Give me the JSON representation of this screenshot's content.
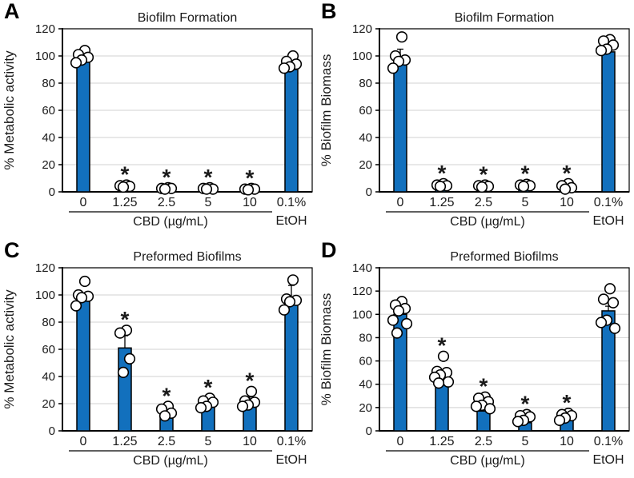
{
  "figure": {
    "colors": {
      "bar_fill": "#1270BD",
      "bar_stroke": "#000000",
      "point_fill": "#ffffff",
      "point_stroke": "#000000",
      "gridline": "#D9D9D9",
      "axis": "#000000",
      "text": "#1a1a1a"
    }
  },
  "chart_data": [
    {
      "panel": "A",
      "type": "bar",
      "title": "Biofilm Formation",
      "ylabel": "% Metabolic activity",
      "group_label": "CBD (µg/mL)",
      "categories": [
        "0",
        "1.25",
        "2.5",
        "5",
        "10"
      ],
      "control_label_top": "0.1%",
      "control_label_bottom": "EtOH",
      "ylim": [
        0,
        120
      ],
      "ytick_step": 20,
      "bar_values": [
        97,
        2,
        1.5,
        1.5,
        1.5,
        90
      ],
      "error_up": [
        0,
        0,
        0,
        0,
        0,
        0
      ],
      "points": [
        [
          104,
          101,
          99,
          97,
          95
        ],
        [
          5,
          4.5,
          4,
          3.5
        ],
        [
          3,
          2.5,
          2.5,
          2
        ],
        [
          3,
          2.5,
          2,
          2
        ],
        [
          2.5,
          2,
          2,
          1.5
        ],
        [
          100,
          96,
          94,
          92,
          91
        ]
      ],
      "significant": [
        false,
        true,
        true,
        true,
        true,
        false
      ]
    },
    {
      "panel": "B",
      "type": "bar",
      "title": "Biofilm Formation",
      "ylabel": "% Biofilm Biomass",
      "group_label": "CBD (µg/mL)",
      "categories": [
        "0",
        "1.25",
        "2.5",
        "5",
        "10"
      ],
      "control_label_top": "0.1%",
      "control_label_bottom": "EtOH",
      "ylim": [
        0,
        120
      ],
      "ytick_step": 20,
      "bar_values": [
        95,
        3,
        2.5,
        3,
        2,
        103
      ],
      "error_up": [
        10,
        0,
        0,
        0,
        0,
        0
      ],
      "points": [
        [
          114,
          100,
          97,
          96,
          91
        ],
        [
          6,
          5,
          4.5,
          4
        ],
        [
          5,
          4.5,
          4,
          3.5
        ],
        [
          5.5,
          5,
          4.5,
          4
        ],
        [
          6,
          4.5,
          3,
          2
        ],
        [
          112,
          111,
          108,
          105,
          104
        ]
      ],
      "significant": [
        false,
        true,
        true,
        true,
        true,
        false
      ]
    },
    {
      "panel": "C",
      "type": "bar",
      "title": "Preformed Biofilms",
      "ylabel": "% Metabolic activity",
      "group_label": "CBD (µg/mL)",
      "categories": [
        "0",
        "1.25",
        "2.5",
        "5",
        "10"
      ],
      "control_label_top": "0.1%",
      "control_label_bottom": "EtOH",
      "ylim": [
        0,
        120
      ],
      "ytick_step": 20,
      "bar_values": [
        97,
        61,
        14,
        19,
        19,
        94
      ],
      "error_up": [
        0,
        9,
        2,
        3,
        6,
        13
      ],
      "points": [
        [
          110,
          100,
          99,
          98,
          92
        ],
        [
          74,
          72,
          53,
          43
        ],
        [
          18,
          16,
          13,
          11
        ],
        [
          24,
          22,
          21,
          18,
          17
        ],
        [
          29,
          22,
          21,
          19,
          18
        ],
        [
          111,
          97,
          96,
          95,
          89
        ]
      ],
      "significant": [
        false,
        true,
        true,
        true,
        true,
        false
      ]
    },
    {
      "panel": "D",
      "type": "bar",
      "title": "Preformed Biofilms",
      "ylabel": "% Biofilm Biomass",
      "group_label": "CBD (µg/mL)",
      "categories": [
        "0",
        "1.25",
        "2.5",
        "5",
        "10"
      ],
      "control_label_top": "0.1%",
      "control_label_bottom": "EtOH",
      "ylim": [
        0,
        140
      ],
      "ytick_step": 20,
      "bar_values": [
        100,
        43,
        17,
        7,
        9,
        103
      ],
      "error_up": [
        0,
        0,
        0,
        0,
        0,
        4
      ],
      "points": [
        [
          111,
          108,
          105,
          103,
          95,
          92,
          84
        ],
        [
          64,
          51,
          50,
          48,
          46,
          42,
          41
        ],
        [
          29,
          28,
          25,
          22,
          21,
          19
        ],
        [
          14,
          13,
          12,
          9,
          8
        ],
        [
          15,
          14,
          13,
          11,
          9
        ],
        [
          122,
          113,
          110,
          95,
          93,
          88
        ]
      ],
      "significant": [
        false,
        true,
        true,
        true,
        true,
        false
      ]
    }
  ]
}
